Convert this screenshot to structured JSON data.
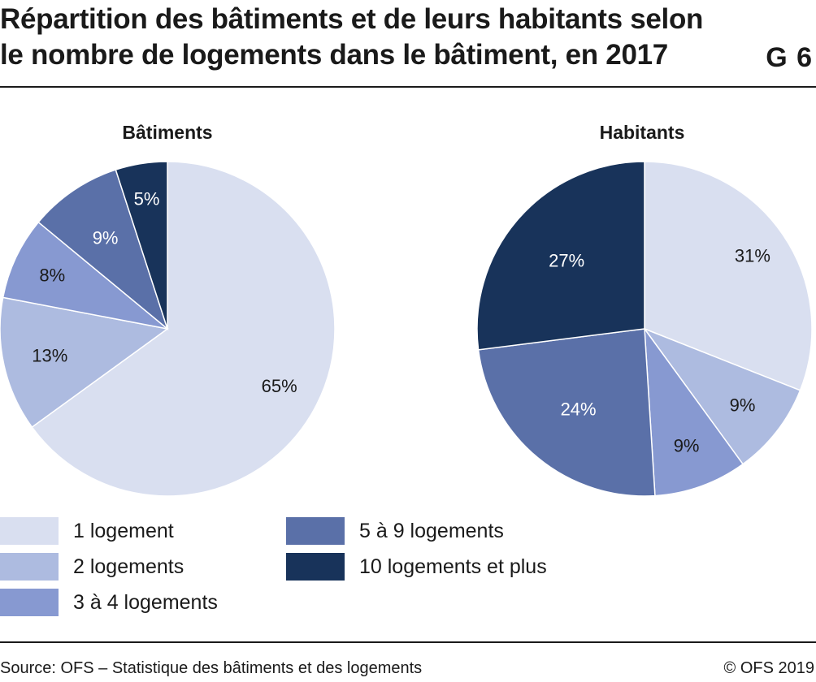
{
  "title_line1": "Répartition des bâtiments et de leurs habitants selon",
  "title_line2": "le nombre de logements dans le bâtiment, en 2017",
  "chart_number": "G 6",
  "categories": [
    "1 logement",
    "2 logements",
    "3 à 4 logements",
    "5 à 9 logements",
    "10 logements et plus"
  ],
  "colors": [
    "#d9dff0",
    "#adbbe0",
    "#8799d1",
    "#5a70a8",
    "#18335a"
  ],
  "chart_data": [
    {
      "type": "pie",
      "title": "Bâtiments",
      "categories": [
        "1 logement",
        "2 logements",
        "3 à 4 logements",
        "5 à 9 logements",
        "10 logements et plus"
      ],
      "values": [
        65,
        13,
        8,
        9,
        5
      ],
      "labels": [
        "65%",
        "13%",
        "8%",
        "9%",
        "5%"
      ]
    },
    {
      "type": "pie",
      "title": "Habitants",
      "categories": [
        "1 logement",
        "2 logements",
        "3 à 4 logements",
        "5 à 9 logements",
        "10 logements et plus"
      ],
      "values": [
        31,
        9,
        9,
        24,
        27
      ],
      "labels": [
        "31%",
        "9%",
        "9%",
        "24%",
        "27%"
      ]
    }
  ],
  "footer": {
    "source": "Source: OFS – Statistique des bâtiments et des logements",
    "copyright": "© OFS 2019"
  }
}
